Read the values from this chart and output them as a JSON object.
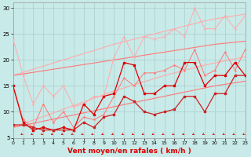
{
  "background_color": "#c8eae8",
  "grid_color": "#aacccc",
  "xlabel": "Vent moyen/en rafales ( km/h )",
  "xlabel_color": "#dd0000",
  "x": [
    0,
    1,
    2,
    3,
    4,
    5,
    6,
    7,
    8,
    9,
    10,
    11,
    12,
    13,
    14,
    15,
    16,
    17,
    18,
    19,
    20,
    21,
    22,
    23
  ],
  "ylim": [
    5,
    31
  ],
  "xlim": [
    0,
    23
  ],
  "yticks": [
    5,
    10,
    15,
    20,
    25,
    30
  ],
  "trend_light1": [
    17.0,
    17.6,
    18.2,
    18.8,
    19.4,
    20.0,
    20.6,
    21.2,
    21.8,
    22.4,
    23.0,
    23.5,
    24.0,
    24.5,
    25.0,
    25.5,
    26.0,
    26.5,
    27.0,
    27.5,
    27.9,
    28.2,
    28.5,
    28.8
  ],
  "trend_light2": [
    7.0,
    7.7,
    8.4,
    9.1,
    9.8,
    10.5,
    11.2,
    11.9,
    12.6,
    13.3,
    14.0,
    14.6,
    15.2,
    15.8,
    16.4,
    17.0,
    17.5,
    18.0,
    18.5,
    19.0,
    19.4,
    19.8,
    20.2,
    20.6
  ],
  "trend_med1": [
    17.0,
    17.3,
    17.6,
    17.9,
    18.2,
    18.5,
    18.8,
    19.1,
    19.4,
    19.7,
    20.0,
    20.3,
    20.6,
    20.9,
    21.2,
    21.5,
    21.8,
    22.1,
    22.4,
    22.7,
    23.0,
    23.2,
    23.4,
    23.6
  ],
  "trend_med2": [
    7.0,
    7.4,
    7.8,
    8.2,
    8.6,
    9.0,
    9.4,
    9.8,
    10.2,
    10.6,
    11.0,
    11.4,
    11.8,
    12.2,
    12.6,
    13.0,
    13.4,
    13.8,
    14.2,
    14.6,
    15.0,
    15.3,
    15.6,
    15.9
  ],
  "zigzag_light": [
    24,
    17,
    11.5,
    15,
    13,
    15,
    11,
    11.5,
    13,
    13,
    20.5,
    24.5,
    20.5,
    24.5,
    24,
    24.5,
    26,
    24.5,
    30,
    26,
    26,
    28.5,
    26,
    28.5
  ],
  "zigzag_med": [
    15,
    8.5,
    7,
    11.5,
    8,
    10,
    7,
    9,
    8.5,
    9.5,
    13,
    16.5,
    15,
    17.5,
    17.5,
    18,
    19,
    18,
    22,
    17,
    18,
    21.5,
    18,
    22
  ],
  "zigzag_dark1": [
    15,
    8,
    6.5,
    7,
    6.5,
    7,
    6.5,
    11.5,
    9.5,
    13,
    13.5,
    19.5,
    19,
    13.5,
    13.5,
    15,
    15,
    19.5,
    19.5,
    15,
    17,
    17,
    19.5,
    17
  ],
  "zigzag_dark2": [
    7.5,
    7.5,
    7,
    6.5,
    6.5,
    6.5,
    6.5,
    8,
    7,
    9,
    9.5,
    13,
    12,
    10,
    9.5,
    10,
    10.5,
    13,
    13,
    10,
    13.5,
    13.5,
    17,
    17
  ],
  "color_light": "#ffaaaa",
  "color_med": "#ff7777",
  "color_dark1": "#dd0000",
  "color_dark2": "#cc2222",
  "arrow_color": "#cc0000"
}
